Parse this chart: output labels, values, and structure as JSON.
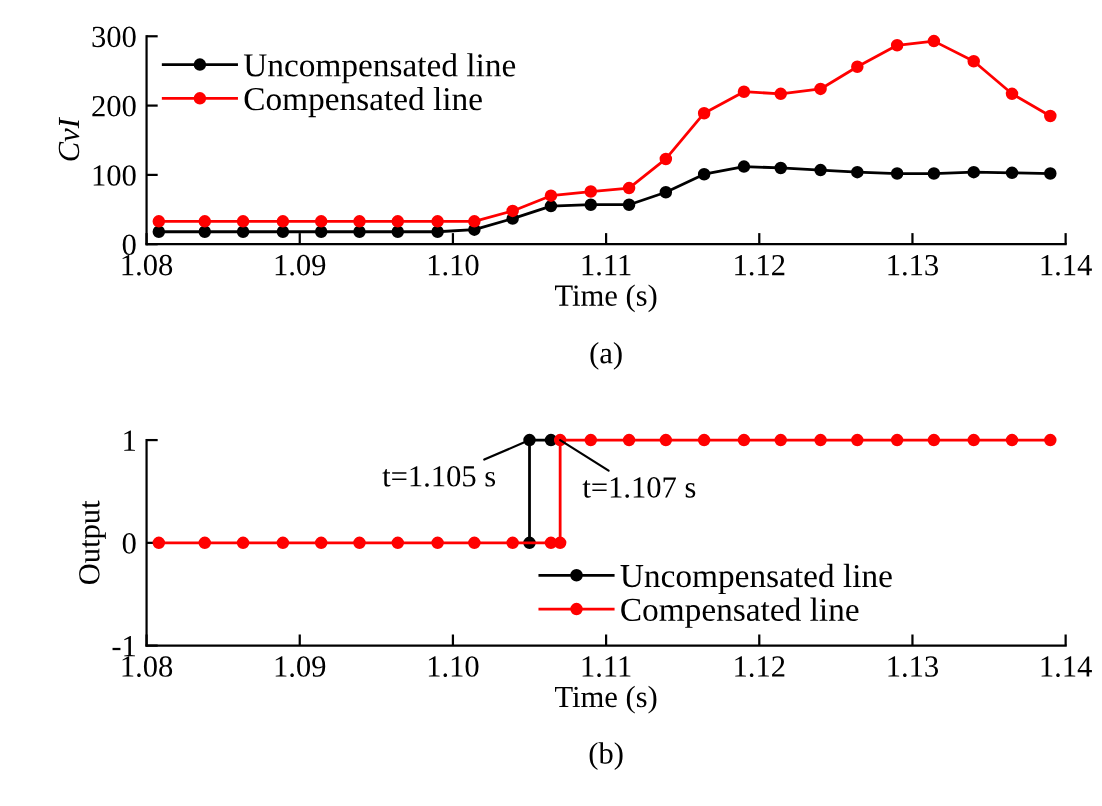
{
  "chart_data": [
    {
      "type": "line",
      "xlabel": "Time (s)",
      "ylabel": "CvI",
      "xlim": [
        1.08,
        1.14
      ],
      "ylim": [
        0,
        300
      ],
      "xticks": [
        1.08,
        1.09,
        {
          "value": 1.1,
          "label": "1.10"
        },
        1.11,
        1.12,
        1.13,
        1.14
      ],
      "yticks": [
        0,
        100,
        200,
        300
      ],
      "marker": "circle",
      "legend": "top left",
      "annotations": [
        "(a)"
      ],
      "x": [
        1.0808,
        1.0838,
        1.0863,
        1.0889,
        1.0914,
        1.0939,
        1.0964,
        1.099,
        1.1014,
        1.1039,
        1.1064,
        1.109,
        1.1115,
        1.1139,
        1.1164,
        1.119,
        1.1214,
        1.124,
        1.1264,
        1.129,
        1.1314,
        1.134,
        1.1365,
        1.139
      ],
      "series": [
        {
          "name": "Uncompensated line",
          "color": "#000000",
          "values": [
            18,
            18,
            18,
            18,
            18,
            18,
            18,
            18,
            21,
            37,
            55,
            57,
            57,
            75,
            101,
            112,
            110,
            107,
            104,
            102,
            102,
            104,
            103,
            102
          ]
        },
        {
          "name": "Compensated line",
          "color": "#ff0000",
          "values": [
            33,
            33,
            33,
            33,
            33,
            33,
            33,
            33,
            33,
            48,
            70,
            76,
            81,
            123,
            189,
            220,
            217,
            224,
            256,
            287,
            293,
            264,
            217,
            185
          ]
        }
      ]
    },
    {
      "type": "line",
      "xlabel": "Time (s)",
      "ylabel": "Output",
      "xlim": [
        1.08,
        1.14
      ],
      "ylim": [
        -1,
        1
      ],
      "xticks": [
        1.08,
        1.09,
        {
          "value": 1.1,
          "label": "1.10"
        },
        1.11,
        1.12,
        1.13,
        1.14
      ],
      "yticks": [
        -1,
        0,
        1
      ],
      "marker": "circle",
      "legend": "center",
      "annotations": [
        {
          "text": "t=1.105 s",
          "x": 1.105,
          "y": 1
        },
        {
          "text": "t=1.107 s",
          "x": 1.107,
          "y": 1
        },
        "(b)"
      ],
      "series": [
        {
          "name": "Uncompensated line",
          "color": "#000000",
          "x": [
            1.105,
            1.105,
            1.1064
          ],
          "values": [
            0,
            1,
            1
          ]
        },
        {
          "name": "Compensated line",
          "color": "#ff0000",
          "x": [
            1.0808,
            1.0838,
            1.0863,
            1.0889,
            1.0914,
            1.0939,
            1.0964,
            1.099,
            1.1014,
            1.1039,
            1.1064,
            1.107,
            1.107,
            1.109,
            1.1115,
            1.1139,
            1.1164,
            1.119,
            1.1214,
            1.124,
            1.1264,
            1.129,
            1.1314,
            1.134,
            1.1365,
            1.139
          ],
          "values": [
            0,
            0,
            0,
            0,
            0,
            0,
            0,
            0,
            0,
            0,
            0,
            0,
            1,
            1,
            1,
            1,
            1,
            1,
            1,
            1,
            1,
            1,
            1,
            1,
            1,
            1
          ]
        }
      ]
    }
  ]
}
